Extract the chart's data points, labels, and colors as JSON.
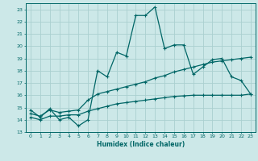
{
  "xlabel": "Humidex (Indice chaleur)",
  "xlim": [
    -0.5,
    23.5
  ],
  "ylim": [
    13,
    23.5
  ],
  "yticks": [
    13,
    14,
    15,
    16,
    17,
    18,
    19,
    20,
    21,
    22,
    23
  ],
  "xticks": [
    0,
    1,
    2,
    3,
    4,
    5,
    6,
    7,
    8,
    9,
    10,
    11,
    12,
    13,
    14,
    15,
    16,
    17,
    18,
    19,
    20,
    21,
    22,
    23
  ],
  "bg_color": "#cce8e8",
  "grid_color": "#aad0d0",
  "line_color": "#006666",
  "line1_y": [
    14.8,
    14.2,
    14.9,
    14.0,
    14.2,
    13.5,
    14.0,
    18.0,
    17.5,
    19.5,
    19.2,
    22.5,
    22.5,
    23.2,
    19.8,
    20.1,
    20.1,
    17.7,
    18.3,
    18.9,
    19.0,
    17.5,
    17.2,
    16.1
  ],
  "line2_y": [
    14.5,
    14.3,
    14.8,
    14.6,
    14.7,
    14.8,
    15.6,
    16.1,
    16.3,
    16.5,
    16.7,
    16.9,
    17.1,
    17.4,
    17.6,
    17.9,
    18.1,
    18.3,
    18.5,
    18.7,
    18.8,
    18.9,
    19.0,
    19.1
  ],
  "line3_y": [
    14.2,
    14.0,
    14.3,
    14.3,
    14.4,
    14.4,
    14.7,
    14.9,
    15.1,
    15.3,
    15.4,
    15.5,
    15.6,
    15.7,
    15.8,
    15.9,
    15.95,
    16.0,
    16.0,
    16.0,
    16.0,
    16.0,
    16.0,
    16.1
  ]
}
